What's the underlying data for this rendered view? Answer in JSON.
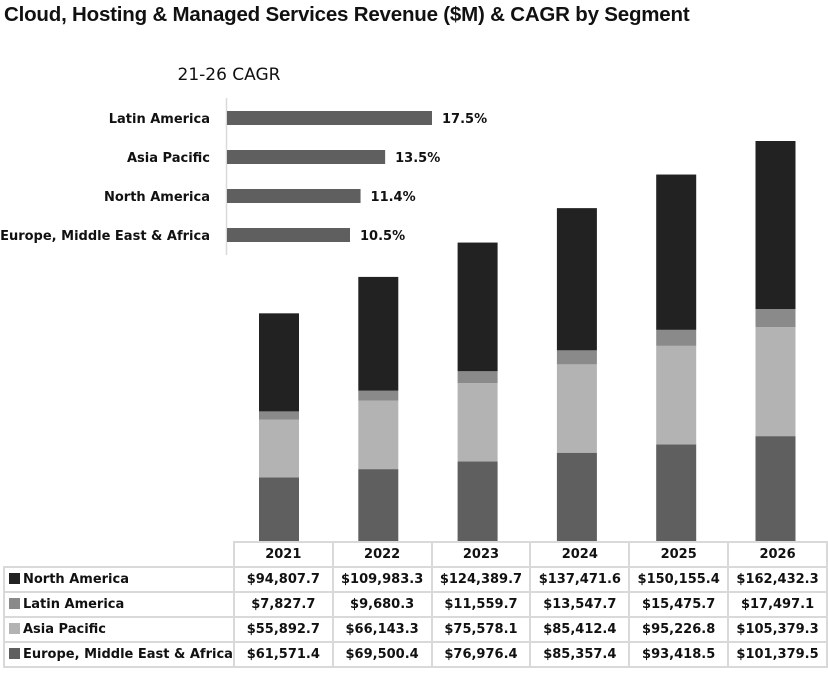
{
  "chart_data": {
    "type": "bar",
    "stacked": true,
    "title": "Cloud, Hosting & Managed Services Revenue ($M) & CAGR by Segment",
    "unit": "$M",
    "categories": [
      "2021",
      "2022",
      "2023",
      "2024",
      "2025",
      "2026"
    ],
    "series": [
      {
        "name": "North America",
        "color": "#222222",
        "values": [
          94807.7,
          109983.3,
          124389.7,
          137471.6,
          150155.4,
          162432.3
        ],
        "labels": [
          "$94,807.7",
          "$109,983.3",
          "$124,389.7",
          "$137,471.6",
          "$150,155.4",
          "$162,432.3"
        ]
      },
      {
        "name": "Latin America",
        "color": "#8a8a8a",
        "values": [
          7827.7,
          9680.3,
          11559.7,
          13547.7,
          15475.7,
          17497.1
        ],
        "labels": [
          "$7,827.7",
          "$9,680.3",
          "$11,559.7",
          "$13,547.7",
          "$15,475.7",
          "$17,497.1"
        ]
      },
      {
        "name": "Asia Pacific",
        "color": "#b3b3b3",
        "values": [
          55892.7,
          66143.3,
          75578.1,
          85412.4,
          95226.8,
          105379.3
        ],
        "labels": [
          "$55,892.7",
          "$66,143.3",
          "$75,578.1",
          "$85,412.4",
          "$95,226.8",
          "$105,379.3"
        ]
      },
      {
        "name": "Europe, Middle East & Africa",
        "color": "#5f5f5f",
        "values": [
          61571.4,
          69500.4,
          76976.4,
          85357.4,
          93418.5,
          101379.5
        ],
        "labels": [
          "$61,571.4",
          "$69,500.4",
          "$76,976.4",
          "$85,357.4",
          "$93,418.5",
          "$101,379.5"
        ]
      }
    ],
    "stack_order_bottom_to_top": [
      "Europe, Middle East & Africa",
      "Asia Pacific",
      "Latin America",
      "North America"
    ],
    "ylim": [
      0,
      390000
    ],
    "grid": false,
    "legend": "table-bottom",
    "inset": {
      "type": "bar",
      "orientation": "horizontal",
      "title": "21-26 CAGR",
      "categories": [
        "Latin America",
        "Asia Pacific",
        "North America",
        "Europe, Middle East & Africa"
      ],
      "values": [
        17.5,
        13.5,
        11.4,
        10.5
      ],
      "labels": [
        "17.5%",
        "13.5%",
        "11.4%",
        "10.5%"
      ],
      "color": "#5f5f5f",
      "xlim": [
        0,
        20
      ]
    }
  }
}
